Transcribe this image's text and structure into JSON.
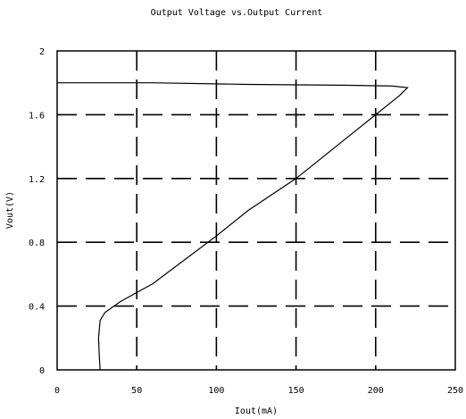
{
  "chart_data": {
    "type": "line",
    "title": "Output Voltage vs.Output Current",
    "xlabel": "Iout(mA)",
    "ylabel": "Vout(V)",
    "xlim": [
      0,
      250
    ],
    "ylim": [
      0,
      2
    ],
    "x_ticks": [
      0,
      50,
      100,
      150,
      200,
      250
    ],
    "y_ticks": [
      0,
      0.4,
      0.8,
      1.2,
      1.6,
      2
    ],
    "x_tick_labels": [
      "0",
      "50",
      "100",
      "150",
      "200",
      "250"
    ],
    "y_tick_labels": [
      "0",
      "0.4",
      "0.8",
      "1.2",
      "1.6",
      "2"
    ],
    "grid": true,
    "grid_style": "dashed",
    "line_color": "#000000",
    "series": [
      {
        "x": [
          0,
          60,
          120,
          180,
          210,
          220,
          215,
          200,
          180,
          150,
          120,
          100,
          80,
          60,
          40,
          30,
          27,
          26,
          26.5,
          27
        ],
        "y": [
          1.8,
          1.8,
          1.79,
          1.785,
          1.78,
          1.77,
          1.72,
          1.6,
          1.44,
          1.2,
          1.0,
          0.84,
          0.69,
          0.54,
          0.43,
          0.36,
          0.31,
          0.2,
          0.08,
          0.0
        ]
      }
    ]
  }
}
